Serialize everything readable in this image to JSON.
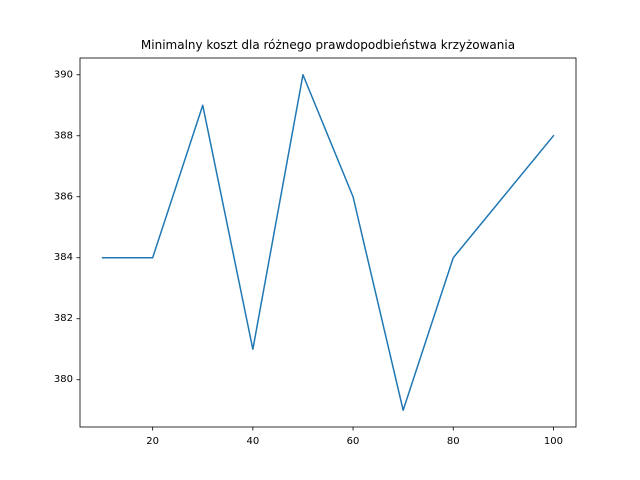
{
  "chart_data": {
    "type": "line",
    "title": "Minimalny koszt dla różnego prawdopodbieństwa krzyżowania",
    "xlabel": "",
    "ylabel": "",
    "x": [
      10,
      20,
      30,
      40,
      50,
      60,
      70,
      80,
      90,
      100
    ],
    "series": [
      {
        "values": [
          384,
          384,
          389,
          381,
          390,
          386,
          379,
          384,
          386,
          388
        ],
        "color": "#1f77b4"
      }
    ],
    "xticks": [
      20,
      40,
      60,
      80,
      100
    ],
    "xtick_labels": [
      "20",
      "40",
      "60",
      "80",
      "100"
    ],
    "yticks": [
      380,
      382,
      384,
      386,
      388,
      390
    ],
    "ytick_labels": [
      "380",
      "382",
      "384",
      "386",
      "388",
      "390"
    ],
    "xlim": [
      5.5,
      104.5
    ],
    "ylim": [
      378.45,
      390.55
    ],
    "grid": false,
    "legend": "none"
  }
}
